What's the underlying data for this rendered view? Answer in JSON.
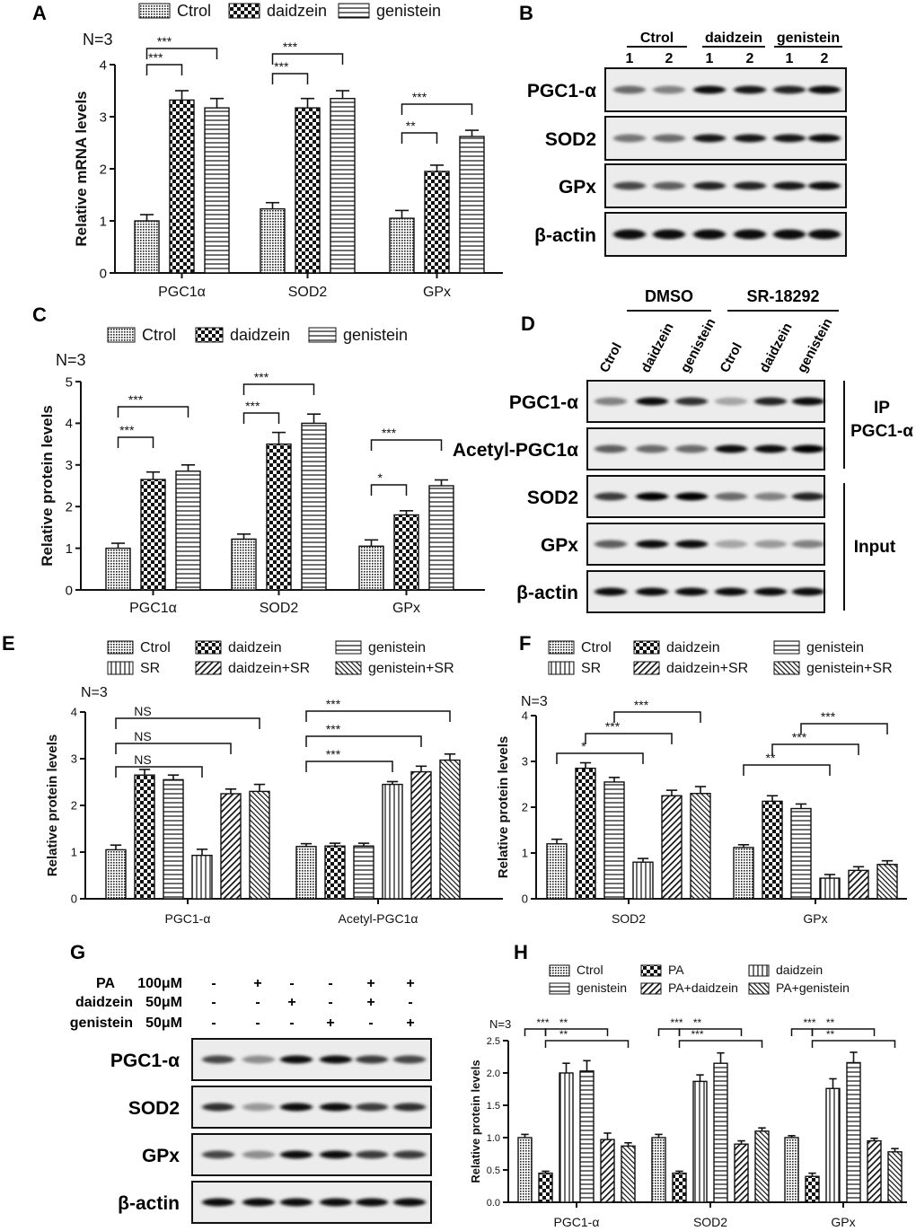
{
  "panel_labels": [
    "A",
    "B",
    "C",
    "D",
    "E",
    "F",
    "G",
    "H"
  ],
  "legends": {
    "three": [
      "Ctrol",
      "daidzein",
      "genistein"
    ],
    "six": [
      "Ctrol",
      "daidzein",
      "genistein",
      "SR",
      "daidzein+SR",
      "genistein+SR"
    ],
    "six_h": [
      "Ctrol",
      "PA",
      "daidzein",
      "genistein",
      "PA+daidzein",
      "PA+genistein"
    ]
  },
  "blots": {
    "B": {
      "groups": [
        "Ctrol",
        "daidzein",
        "genistein"
      ],
      "lanes": [
        "1",
        "2",
        "1",
        "2",
        "1",
        "2"
      ],
      "rows": [
        "PGC1-α",
        "SOD2",
        "GPx",
        "β-actin"
      ]
    },
    "D": {
      "groups": [
        "DMSO",
        "SR-18292"
      ],
      "lanes": [
        "Ctrol",
        "daidzein",
        "genistein",
        "Ctrol",
        "daidzein",
        "genistein"
      ],
      "rows": [
        "PGC1-α",
        "Acetyl-PGC1α",
        "SOD2",
        "GPx",
        "β-actin"
      ],
      "side_labels": [
        "IP",
        "PGC1-α",
        "Input"
      ]
    },
    "G": {
      "conditions": [
        "PA",
        "daidzein",
        "genistein"
      ],
      "doses": [
        "100μM",
        "50μM",
        "50μM"
      ],
      "matrix": [
        [
          "-",
          "+",
          "-",
          "-",
          "+",
          "+"
        ],
        [
          "-",
          "-",
          "+",
          "-",
          "+",
          "-"
        ],
        [
          "-",
          "-",
          "-",
          "+",
          "-",
          "+"
        ]
      ],
      "rows": [
        "PGC1-α",
        "SOD2",
        "GPx",
        "β-actin"
      ]
    }
  },
  "chart_data": [
    {
      "panel": "A",
      "type": "bar",
      "n_label": "N=3",
      "ylabel": "Relative mRNA levels",
      "xlabel": "",
      "ylim": [
        0,
        4
      ],
      "yticks": [
        "0",
        "1",
        "2",
        "3",
        "4"
      ],
      "categories": [
        "PGC1α",
        "SOD2",
        "GPx"
      ],
      "series": [
        {
          "name": "Ctrol",
          "values": [
            1.0,
            1.23,
            1.05
          ],
          "errors": [
            0.12,
            0.12,
            0.15
          ]
        },
        {
          "name": "daidzein",
          "values": [
            3.32,
            3.17,
            1.95
          ],
          "errors": [
            0.18,
            0.18,
            0.12
          ]
        },
        {
          "name": "genistein",
          "values": [
            3.17,
            3.35,
            2.62
          ],
          "errors": [
            0.18,
            0.15,
            0.12
          ]
        }
      ],
      "significance": [
        {
          "cat": 0,
          "from": 0,
          "to": 1,
          "label": "***"
        },
        {
          "cat": 0,
          "from": 0,
          "to": 2,
          "label": "***"
        },
        {
          "cat": 1,
          "from": 0,
          "to": 1,
          "label": "***"
        },
        {
          "cat": 1,
          "from": 0,
          "to": 2,
          "label": "***"
        },
        {
          "cat": 2,
          "from": 0,
          "to": 1,
          "label": "**"
        },
        {
          "cat": 2,
          "from": 0,
          "to": 2,
          "label": "***"
        }
      ]
    },
    {
      "panel": "C",
      "type": "bar",
      "n_label": "N=3",
      "ylabel": "Relative protein levels",
      "xlabel": "",
      "ylim": [
        0,
        5
      ],
      "yticks": [
        "0",
        "1",
        "2",
        "3",
        "4",
        "5"
      ],
      "categories": [
        "PGC1α",
        "SOD2",
        "GPx"
      ],
      "series": [
        {
          "name": "Ctrol",
          "values": [
            1.0,
            1.22,
            1.05
          ],
          "errors": [
            0.12,
            0.12,
            0.15
          ]
        },
        {
          "name": "daidzein",
          "values": [
            2.65,
            3.5,
            1.8
          ],
          "errors": [
            0.18,
            0.28,
            0.1
          ]
        },
        {
          "name": "genistein",
          "values": [
            2.85,
            4.0,
            2.5
          ],
          "errors": [
            0.15,
            0.22,
            0.14
          ]
        }
      ],
      "significance": [
        {
          "cat": 0,
          "from": 0,
          "to": 1,
          "label": "***"
        },
        {
          "cat": 0,
          "from": 0,
          "to": 2,
          "label": "***"
        },
        {
          "cat": 1,
          "from": 0,
          "to": 1,
          "label": "***"
        },
        {
          "cat": 1,
          "from": 0,
          "to": 2,
          "label": "***"
        },
        {
          "cat": 2,
          "from": 0,
          "to": 1,
          "label": "*"
        },
        {
          "cat": 2,
          "from": 0,
          "to": 2,
          "label": "***"
        }
      ]
    },
    {
      "panel": "E",
      "type": "bar",
      "n_label": "N=3",
      "ylabel": "Relative protein levels",
      "xlabel": "",
      "ylim": [
        0,
        4
      ],
      "yticks": [
        "0",
        "1",
        "2",
        "3",
        "4"
      ],
      "categories": [
        "PGC1-α",
        "Acetyl-PGC1α"
      ],
      "series": [
        {
          "name": "Ctrol",
          "values": [
            1.05,
            1.12
          ],
          "errors": [
            0.1,
            0.06
          ]
        },
        {
          "name": "daidzein",
          "values": [
            2.65,
            1.13
          ],
          "errors": [
            0.12,
            0.06
          ]
        },
        {
          "name": "genistein",
          "values": [
            2.55,
            1.13
          ],
          "errors": [
            0.1,
            0.06
          ]
        },
        {
          "name": "SR",
          "values": [
            0.93,
            2.45
          ],
          "errors": [
            0.13,
            0.06
          ]
        },
        {
          "name": "daidzein+SR",
          "values": [
            2.25,
            2.72
          ],
          "errors": [
            0.1,
            0.12
          ]
        },
        {
          "name": "genistein+SR",
          "values": [
            2.3,
            2.97
          ],
          "errors": [
            0.15,
            0.13
          ]
        }
      ],
      "significance": [
        {
          "cat": 0,
          "from": 0,
          "to": 3,
          "label": "NS"
        },
        {
          "cat": 0,
          "from": 0,
          "to": 4,
          "label": "NS"
        },
        {
          "cat": 0,
          "from": 0,
          "to": 5,
          "label": "NS"
        },
        {
          "cat": 1,
          "from": 0,
          "to": 3,
          "label": "***"
        },
        {
          "cat": 1,
          "from": 0,
          "to": 4,
          "label": "***"
        },
        {
          "cat": 1,
          "from": 0,
          "to": 5,
          "label": "***"
        }
      ]
    },
    {
      "panel": "F",
      "type": "bar",
      "n_label": "N=3",
      "ylabel": "Relative protein levels",
      "xlabel": "",
      "ylim": [
        0,
        4
      ],
      "yticks": [
        "0",
        "1",
        "2",
        "3",
        "4"
      ],
      "categories": [
        "SOD2",
        "GPx"
      ],
      "series": [
        {
          "name": "Ctrol",
          "values": [
            1.2,
            1.12
          ],
          "errors": [
            0.1,
            0.06
          ]
        },
        {
          "name": "daidzein",
          "values": [
            2.85,
            2.13
          ],
          "errors": [
            0.12,
            0.12
          ]
        },
        {
          "name": "genistein",
          "values": [
            2.55,
            1.97
          ],
          "errors": [
            0.1,
            0.1
          ]
        },
        {
          "name": "SR",
          "values": [
            0.8,
            0.45
          ],
          "errors": [
            0.08,
            0.08
          ]
        },
        {
          "name": "daidzein+SR",
          "values": [
            2.25,
            0.62
          ],
          "errors": [
            0.12,
            0.08
          ]
        },
        {
          "name": "genistein+SR",
          "values": [
            2.3,
            0.75
          ],
          "errors": [
            0.15,
            0.08
          ]
        }
      ],
      "significance": [
        {
          "cat": 0,
          "from": 0,
          "to": 3,
          "label": "*"
        },
        {
          "cat": 0,
          "from": 1,
          "to": 4,
          "label": "***"
        },
        {
          "cat": 0,
          "from": 2,
          "to": 5,
          "label": "***"
        },
        {
          "cat": 1,
          "from": 0,
          "to": 3,
          "label": "**"
        },
        {
          "cat": 1,
          "from": 1,
          "to": 4,
          "label": "***"
        },
        {
          "cat": 1,
          "from": 2,
          "to": 5,
          "label": "***"
        }
      ]
    },
    {
      "panel": "H",
      "type": "bar",
      "n_label": "N=3",
      "ylabel": "Relative protein levels",
      "xlabel": "",
      "ylim": [
        0,
        2.5
      ],
      "yticks": [
        "0.0",
        "0.5",
        "1.0",
        "1.5",
        "2.0",
        "2.5"
      ],
      "categories": [
        "PGC1-α",
        "SOD2",
        "GPx"
      ],
      "series": [
        {
          "name": "Ctrol",
          "values": [
            1.0,
            1.0,
            1.0
          ],
          "errors": [
            0.05,
            0.05,
            0.03
          ]
        },
        {
          "name": "PA",
          "values": [
            0.45,
            0.45,
            0.4
          ],
          "errors": [
            0.03,
            0.03,
            0.05
          ]
        },
        {
          "name": "daidzein",
          "values": [
            2.0,
            1.87,
            1.76
          ],
          "errors": [
            0.15,
            0.1,
            0.15
          ]
        },
        {
          "name": "genistein",
          "values": [
            2.03,
            2.15,
            2.16
          ],
          "errors": [
            0.16,
            0.16,
            0.16
          ]
        },
        {
          "name": "PA+daidzein",
          "values": [
            0.97,
            0.9,
            0.95
          ],
          "errors": [
            0.1,
            0.05,
            0.04
          ]
        },
        {
          "name": "PA+genistein",
          "values": [
            0.87,
            1.1,
            0.78
          ],
          "errors": [
            0.05,
            0.05,
            0.05
          ]
        }
      ],
      "significance": [
        {
          "cat": 0,
          "from": 0,
          "to": 1,
          "label": "***"
        },
        {
          "cat": 0,
          "from": 1,
          "to": 4,
          "label": "**"
        },
        {
          "cat": 0,
          "from": 1,
          "to": 5,
          "label": "**"
        },
        {
          "cat": 1,
          "from": 0,
          "to": 1,
          "label": "***"
        },
        {
          "cat": 1,
          "from": 1,
          "to": 4,
          "label": "**"
        },
        {
          "cat": 1,
          "from": 1,
          "to": 5,
          "label": "***"
        },
        {
          "cat": 2,
          "from": 0,
          "to": 1,
          "label": "***"
        },
        {
          "cat": 2,
          "from": 1,
          "to": 4,
          "label": "**"
        },
        {
          "cat": 2,
          "from": 1,
          "to": 5,
          "label": "**"
        }
      ]
    }
  ]
}
